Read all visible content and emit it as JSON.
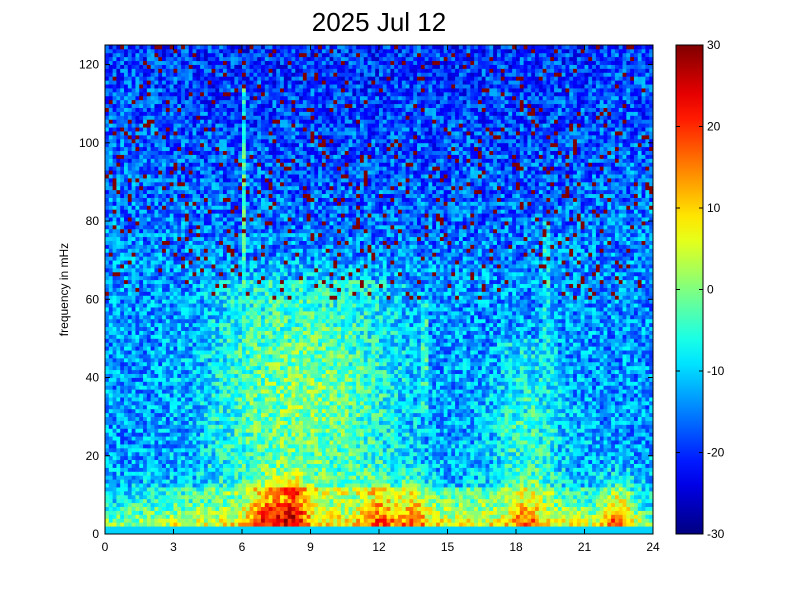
{
  "chart_data": {
    "type": "heatmap",
    "title": "2025 Jul 12",
    "xlabel": "",
    "ylabel": "frequency in mHz",
    "xlim": [
      0,
      24
    ],
    "ylim": [
      0,
      125
    ],
    "x_ticks": [
      0,
      3,
      6,
      9,
      12,
      15,
      18,
      21,
      24
    ],
    "y_ticks": [
      0,
      20,
      40,
      60,
      80,
      100,
      120
    ],
    "colormap": "jet",
    "colorbar": {
      "range": [
        -30,
        30
      ],
      "ticks": [
        -30,
        -20,
        -10,
        0,
        10,
        20,
        30
      ]
    },
    "time_bins": 144,
    "freq_bins": 125,
    "description_of_values": "Spectral power (colorbar units) vs hour of day (x) and frequency in mHz (y). Highest values (~20-30) in the 0-10 mHz band, strongest around 7-9 h and 22-23 h; broadband moderate values (~-5 to +5) below ~60 mHz between ~4-14 h and ~17-20 h; low values (~-20 to -15) above ~70 mHz with scattered speckle.",
    "hotspots": [
      {
        "x": 8.2,
        "y": 5,
        "value": 28
      },
      {
        "x": 7.0,
        "y": 4,
        "value": 22
      },
      {
        "x": 12.0,
        "y": 4,
        "value": 20
      },
      {
        "x": 13.5,
        "y": 6,
        "value": 18
      },
      {
        "x": 18.5,
        "y": 4,
        "value": 18
      },
      {
        "x": 22.5,
        "y": 4,
        "value": 26
      }
    ],
    "bands": [
      {
        "x0": 4,
        "x1": 14,
        "y0": 10,
        "y1": 65,
        "value": 0
      },
      {
        "x0": 17,
        "x1": 20,
        "y0": 10,
        "y1": 50,
        "value": -4
      },
      {
        "x0": 0,
        "x1": 24,
        "y0": 0,
        "y1": 12,
        "value": 6
      },
      {
        "x0": 0,
        "x1": 24,
        "y0": 70,
        "y1": 125,
        "value": -18
      }
    ],
    "vertical_streaks": [
      {
        "x": 6.1,
        "y0": 30,
        "y1": 115,
        "value": -5
      },
      {
        "x": 14.0,
        "y0": 30,
        "y1": 60,
        "value": -6
      },
      {
        "x": 19.3,
        "y0": 30,
        "y1": 80,
        "value": -8
      }
    ]
  }
}
